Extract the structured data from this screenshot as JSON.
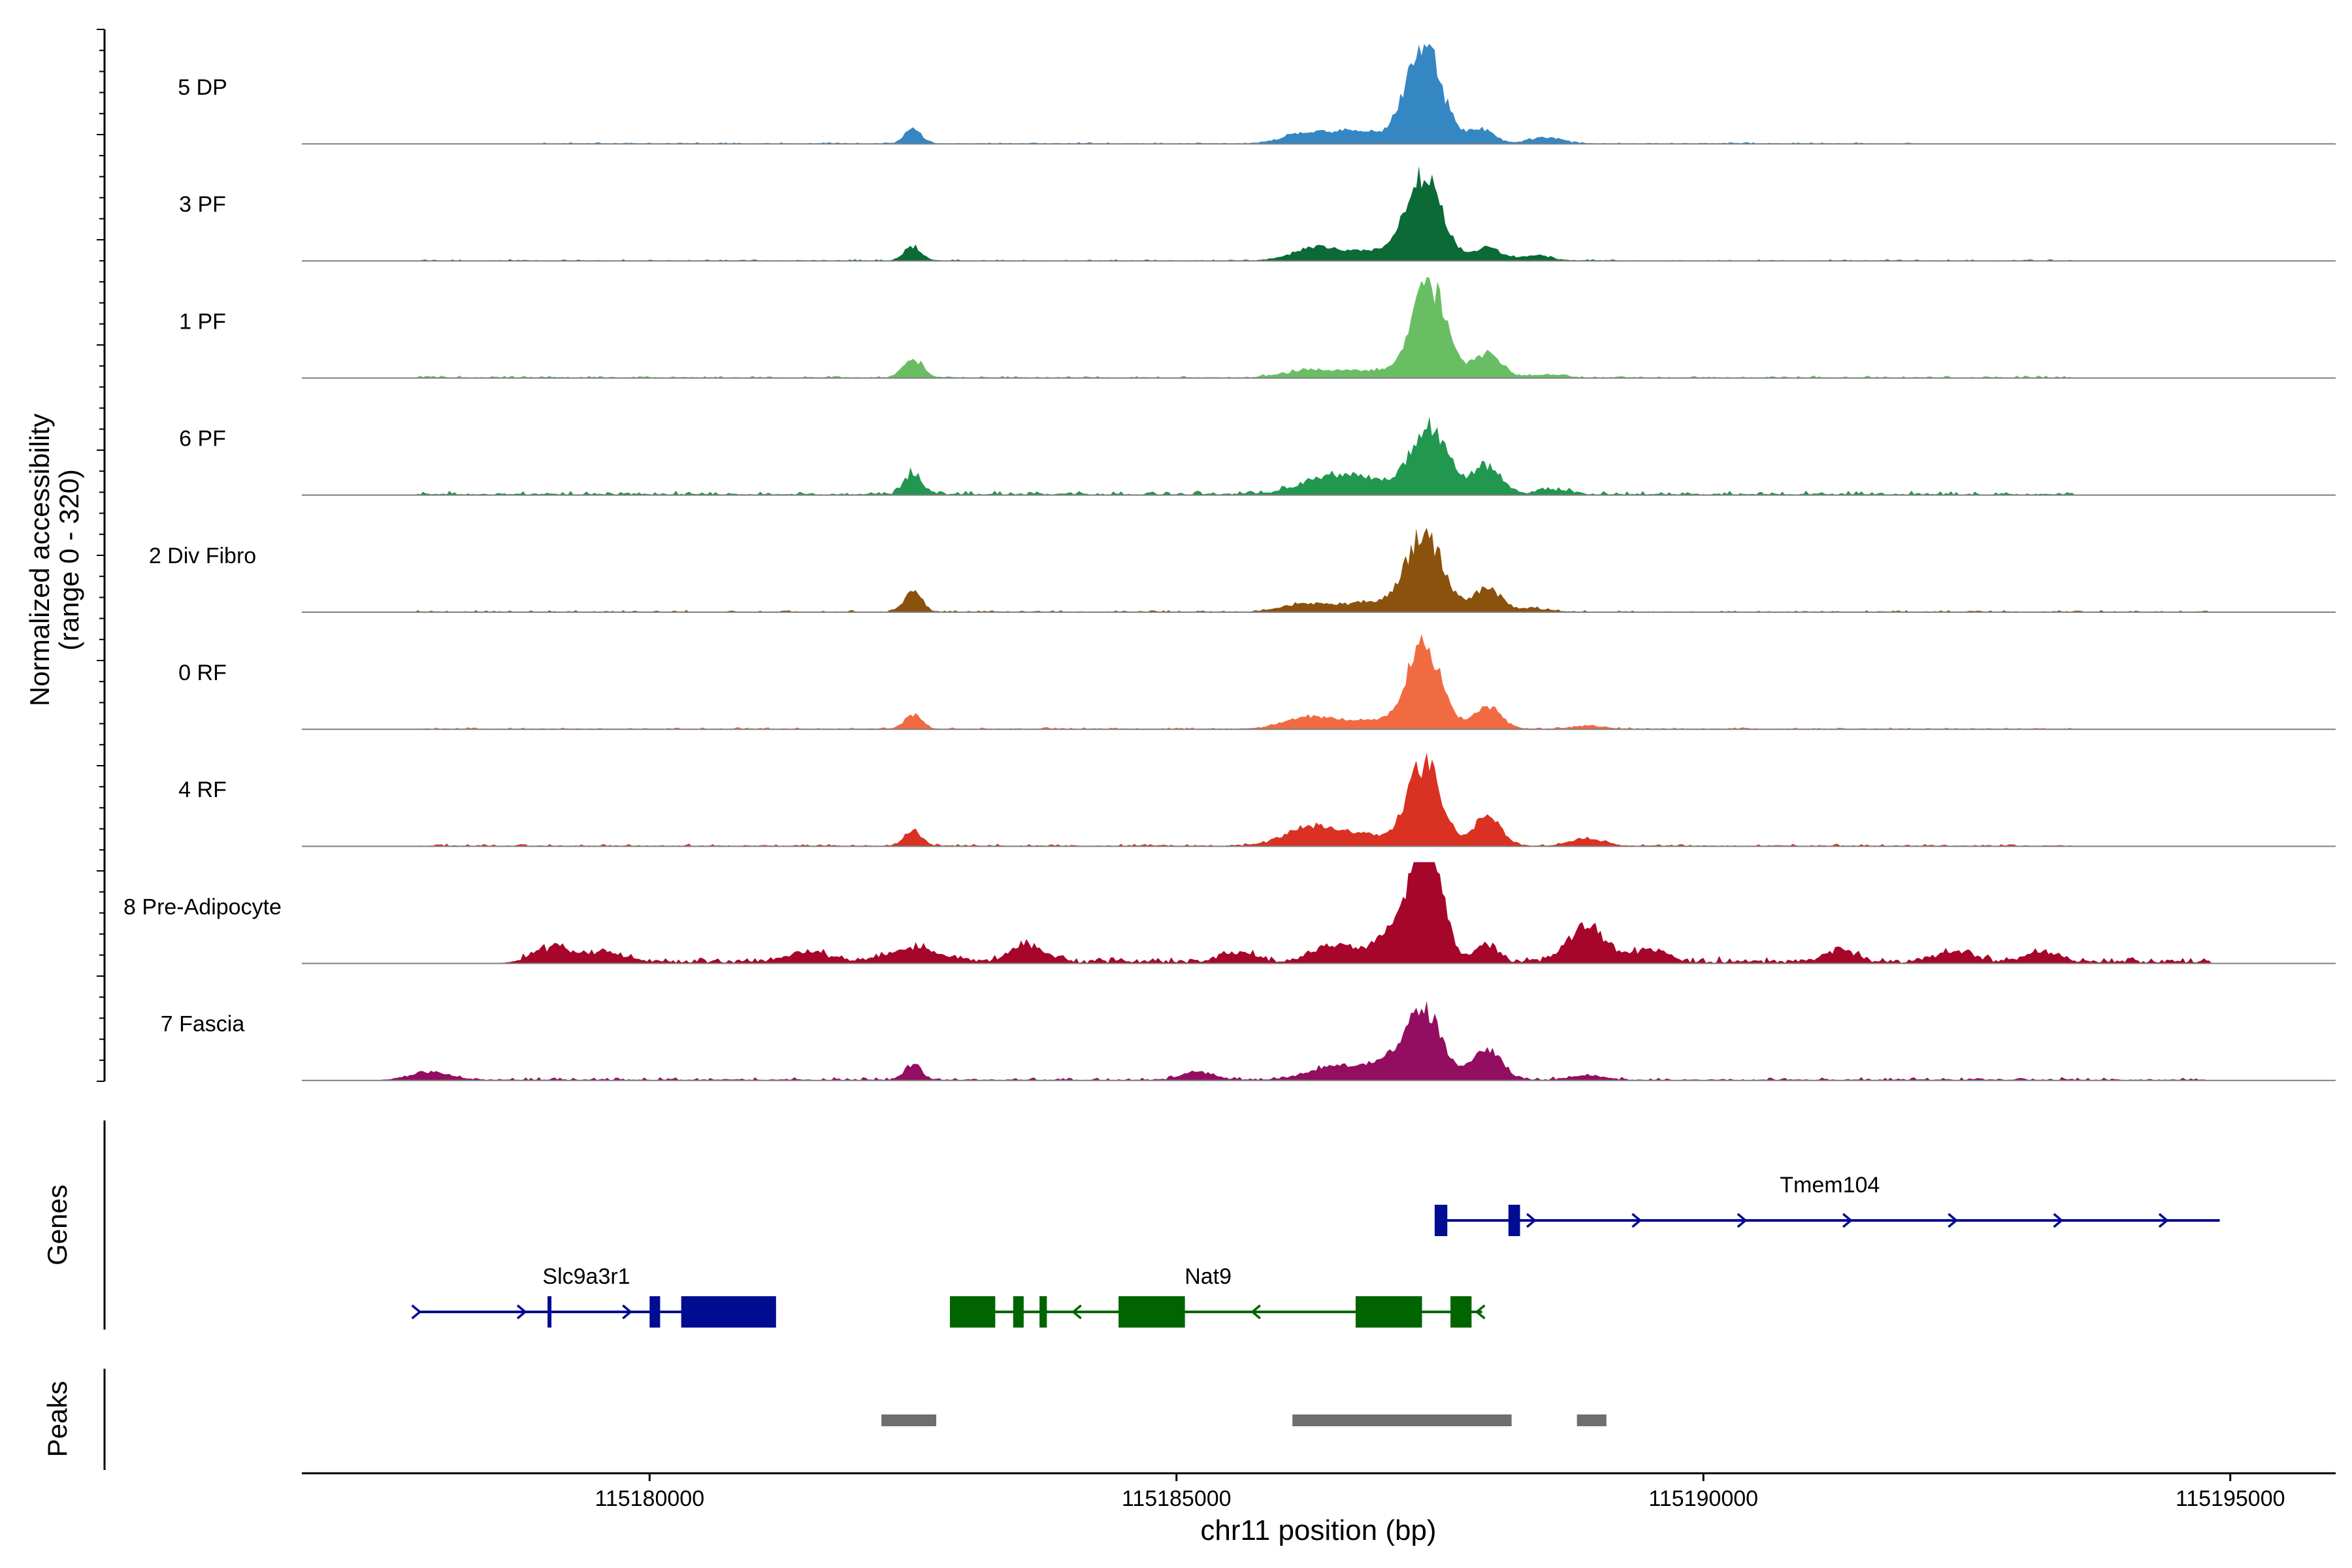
{
  "chart_data": {
    "type": "area",
    "title": "",
    "ylabel_line1": "Normalized accessibility",
    "ylabel_line2": "(range 0 - 320)",
    "y_range": [
      0,
      320
    ],
    "xlabel": "chr11 position (bp)",
    "x_range": [
      115176700,
      115196000
    ],
    "x_ticks": [
      115180000,
      115185000,
      115190000,
      115195000
    ],
    "x_tick_labels": [
      "115180000",
      "115185000",
      "115190000",
      "115195000"
    ],
    "tracks": [
      {
        "name": "5 DP",
        "color": "#3487C3",
        "noise": [
          0.012,
          0.006
        ],
        "span": [
          115179000,
          115192000
        ],
        "peaks": [
          [
            115182500,
            45,
            80
          ],
          [
            115186200,
            30,
            200
          ],
          [
            115186700,
            40,
            250
          ],
          [
            115187350,
            300,
            170
          ],
          [
            115187900,
            45,
            120
          ],
          [
            115188500,
            20,
            150
          ]
        ]
      },
      {
        "name": "3 PF",
        "color": "#0B6A35",
        "noise": [
          0.012,
          0.006
        ],
        "span": [
          115177800,
          115193500
        ],
        "peaks": [
          [
            115182500,
            45,
            80
          ],
          [
            115186300,
            40,
            200
          ],
          [
            115186800,
            30,
            250
          ],
          [
            115187350,
            260,
            170
          ],
          [
            115187950,
            40,
            130
          ],
          [
            115188400,
            15,
            150
          ]
        ]
      },
      {
        "name": "1 PF",
        "color": "#69BE64",
        "noise": [
          0.018,
          0.008
        ],
        "span": [
          115177800,
          115193500
        ],
        "peaks": [
          [
            115182500,
            60,
            90
          ],
          [
            115186300,
            25,
            250
          ],
          [
            115186900,
            20,
            250
          ],
          [
            115187400,
            290,
            160
          ],
          [
            115187950,
            75,
            130
          ],
          [
            115188500,
            10,
            150
          ]
        ]
      },
      {
        "name": "6 PF",
        "color": "#21974F",
        "noise": [
          0.035,
          0.012
        ],
        "span": [
          115177800,
          115193500
        ],
        "peaks": [
          [
            115182500,
            70,
            80
          ],
          [
            115186400,
            50,
            250
          ],
          [
            115186800,
            40,
            200
          ],
          [
            115187400,
            210,
            180
          ],
          [
            115187950,
            90,
            130
          ],
          [
            115188600,
            15,
            150
          ]
        ]
      },
      {
        "name": "2 Div Fibro",
        "color": "#8A520D",
        "noise": [
          0.015,
          0.006
        ],
        "span": [
          115177800,
          115194800
        ],
        "peaks": [
          [
            115182500,
            70,
            80
          ],
          [
            115186200,
            25,
            200
          ],
          [
            115186800,
            30,
            250
          ],
          [
            115187350,
            250,
            170
          ],
          [
            115187950,
            75,
            130
          ],
          [
            115188400,
            10,
            150
          ]
        ]
      },
      {
        "name": "0 RF",
        "color": "#F06B42",
        "noise": [
          0.015,
          0.006
        ],
        "span": [
          115177800,
          115193500
        ],
        "peaks": [
          [
            115182500,
            45,
            80
          ],
          [
            115186300,
            40,
            250
          ],
          [
            115186900,
            25,
            200
          ],
          [
            115187350,
            260,
            160
          ],
          [
            115187950,
            70,
            130
          ],
          [
            115188900,
            10,
            150
          ]
        ]
      },
      {
        "name": "4 RF",
        "color": "#D93223",
        "noise": [
          0.02,
          0.008
        ],
        "span": [
          115177800,
          115193500
        ],
        "peaks": [
          [
            115182500,
            50,
            80
          ],
          [
            115186300,
            60,
            250
          ],
          [
            115186800,
            30,
            200
          ],
          [
            115187350,
            260,
            160
          ],
          [
            115187950,
            100,
            120
          ],
          [
            115188900,
            25,
            150
          ]
        ]
      },
      {
        "name": "8 Pre-Adipocyte",
        "color": "#A7062B",
        "noise": [
          0.05,
          0.03
        ],
        "span": [
          115178800,
          115194800
        ],
        "peaks": [
          [
            115179100,
            45,
            200
          ],
          [
            115179600,
            30,
            150
          ],
          [
            115181500,
            30,
            200
          ],
          [
            115182500,
            40,
            250
          ],
          [
            115183600,
            55,
            150
          ],
          [
            115185600,
            30,
            150
          ],
          [
            115186500,
            50,
            200
          ],
          [
            115187000,
            70,
            150
          ],
          [
            115187350,
            400,
            150
          ],
          [
            115187950,
            55,
            100
          ],
          [
            115188900,
            110,
            180
          ],
          [
            115189500,
            40,
            150
          ],
          [
            115191300,
            35,
            150
          ],
          [
            115192400,
            35,
            150
          ],
          [
            115193200,
            30,
            150
          ]
        ]
      },
      {
        "name": "7 Fascia",
        "color": "#930D61",
        "noise": [
          0.025,
          0.01
        ],
        "span": [
          115177800,
          115194800
        ],
        "peaks": [
          [
            115177900,
            25,
            200
          ],
          [
            115182500,
            50,
            80
          ],
          [
            115185200,
            25,
            150
          ],
          [
            115186500,
            40,
            250
          ],
          [
            115187000,
            50,
            200
          ],
          [
            115187350,
            210,
            170
          ],
          [
            115187950,
            100,
            130
          ],
          [
            115188900,
            15,
            150
          ]
        ]
      }
    ],
    "genes": [
      {
        "name": "Tmem104",
        "color": "#000C91",
        "strand": "+",
        "start": 115187450,
        "end": 115194900,
        "exons": [
          [
            115187450,
            115187570
          ],
          [
            115188150,
            115188260
          ]
        ],
        "thin_exons": [],
        "arrows": [
          115188400,
          115189400,
          115190400,
          115191400,
          115192400,
          115193400,
          115194400
        ]
      },
      {
        "name": "Slc9a3r1",
        "color": "#000C91",
        "strand": "+",
        "start": 115177800,
        "end": 115181200,
        "exons": [
          [
            115180000,
            115180100
          ],
          [
            115180300,
            115181200
          ]
        ],
        "thin_exons": [
          115179050
        ],
        "arrows": [
          115177820,
          115178820,
          115179820
        ]
      },
      {
        "name": "Nat9",
        "color": "#006400",
        "strand": "-",
        "start": 115182850,
        "end": 115187900,
        "exons": [
          [
            115182850,
            115183280
          ],
          [
            115183450,
            115183550
          ],
          [
            115183700,
            115183770
          ],
          [
            115184450,
            115185080
          ],
          [
            115186700,
            115187330
          ],
          [
            115187600,
            115187800
          ]
        ],
        "thin_exons": [],
        "arrows": [
          115184020,
          115185720,
          115187850
        ]
      }
    ],
    "peaks": [
      [
        115182200,
        115182720
      ],
      [
        115186100,
        115188180
      ],
      [
        115188800,
        115189080
      ]
    ],
    "gene_track_label": "Genes",
    "peak_track_label": "Peaks"
  }
}
